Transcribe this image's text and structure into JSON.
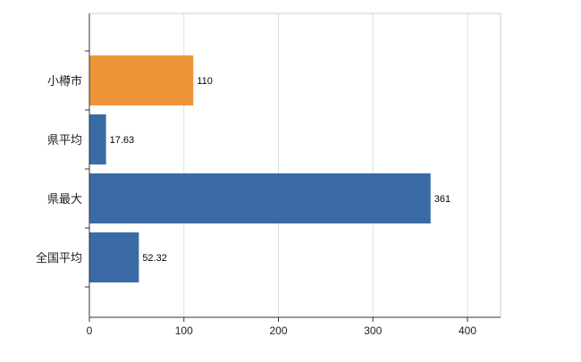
{
  "chart_data": {
    "type": "bar",
    "orientation": "horizontal",
    "title": "",
    "categories": [
      "小樽市",
      "県平均",
      "県最大",
      "全国平均"
    ],
    "values": [
      110,
      17.63,
      361,
      52.32
    ],
    "value_labels": [
      "110",
      "17.63",
      "361",
      "52.32"
    ],
    "series": [
      {
        "name": "values",
        "values": [
          110,
          17.63,
          361,
          52.32
        ]
      }
    ],
    "x_ticks": [
      0,
      100,
      200,
      300,
      400
    ],
    "x_tick_labels": [
      "0",
      "100",
      "200",
      "300",
      "400"
    ],
    "xlim": [
      0,
      435
    ],
    "grid": true,
    "legend": "none",
    "bar_colors": [
      "#EF9539",
      "#3A6BA5",
      "#3A6BA5",
      "#3A6BA5"
    ],
    "colors": {
      "highlight_bar": "#EF9539",
      "default_bar": "#3A6BA5",
      "gridline": "#DDDDDD",
      "border": "#CCCCCC",
      "axis": "#333333",
      "label_text": "#222222",
      "value_text": "#000000"
    }
  }
}
